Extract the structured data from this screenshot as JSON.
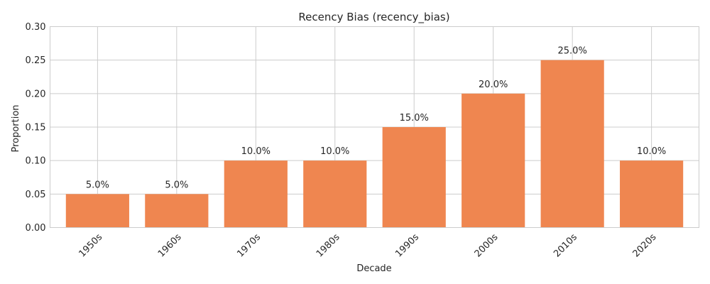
{
  "chart_data": {
    "type": "bar",
    "title": "Recency Bias (recency_bias)",
    "xlabel": "Decade",
    "ylabel": "Proportion",
    "categories": [
      "1950s",
      "1960s",
      "1970s",
      "1980s",
      "1990s",
      "2000s",
      "2010s",
      "2020s"
    ],
    "values": [
      0.05,
      0.05,
      0.1,
      0.1,
      0.15,
      0.2,
      0.25,
      0.1
    ],
    "data_labels": [
      "5.0%",
      "5.0%",
      "10.0%",
      "10.0%",
      "15.0%",
      "20.0%",
      "25.0%",
      "10.0%"
    ],
    "ylim": [
      0,
      0.3
    ],
    "yticks": [
      "0.00",
      "0.05",
      "0.10",
      "0.15",
      "0.20",
      "0.25",
      "0.30"
    ],
    "grid": true,
    "bar_color": "#ef8650",
    "xtick_rotation": 45
  }
}
